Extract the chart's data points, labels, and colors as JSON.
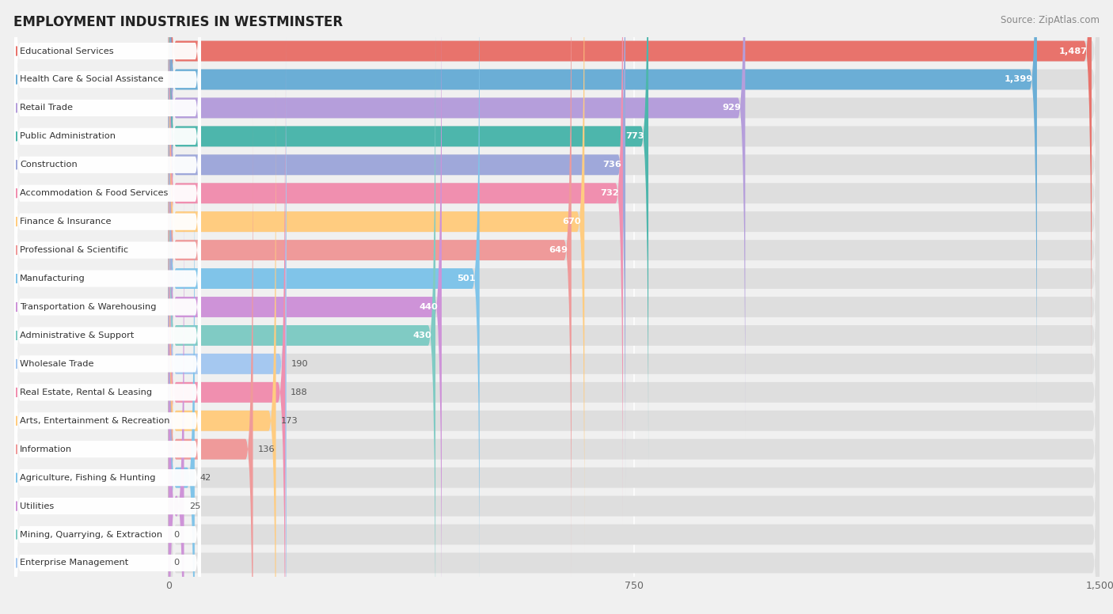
{
  "title": "EMPLOYMENT INDUSTRIES IN WESTMINSTER",
  "source": "Source: ZipAtlas.com",
  "categories": [
    "Educational Services",
    "Health Care & Social Assistance",
    "Retail Trade",
    "Public Administration",
    "Construction",
    "Accommodation & Food Services",
    "Finance & Insurance",
    "Professional & Scientific",
    "Manufacturing",
    "Transportation & Warehousing",
    "Administrative & Support",
    "Wholesale Trade",
    "Real Estate, Rental & Leasing",
    "Arts, Entertainment & Recreation",
    "Information",
    "Agriculture, Fishing & Hunting",
    "Utilities",
    "Mining, Quarrying, & Extraction",
    "Enterprise Management"
  ],
  "values": [
    1487,
    1399,
    929,
    773,
    736,
    732,
    670,
    649,
    501,
    440,
    430,
    190,
    188,
    173,
    136,
    42,
    25,
    0,
    0
  ],
  "colors": [
    "#E8736C",
    "#6BAED6",
    "#B59EDB",
    "#4DB6AC",
    "#9FA8DA",
    "#F08FAF",
    "#FFCC80",
    "#EF9A9A",
    "#80C4E9",
    "#CE93D8",
    "#80CBC4",
    "#A5C8F0",
    "#F08FAF",
    "#FFCC80",
    "#EF9A9A",
    "#80C4E9",
    "#CE93D8",
    "#80CBC4",
    "#A5C8F0"
  ],
  "value_inside_threshold": 350,
  "xlim": [
    0,
    1500
  ],
  "xticks": [
    0,
    750,
    1500
  ],
  "background_color": "#f0f0f0",
  "row_bg_color": "#e8e8e8",
  "bar_track_color": "#dedede"
}
